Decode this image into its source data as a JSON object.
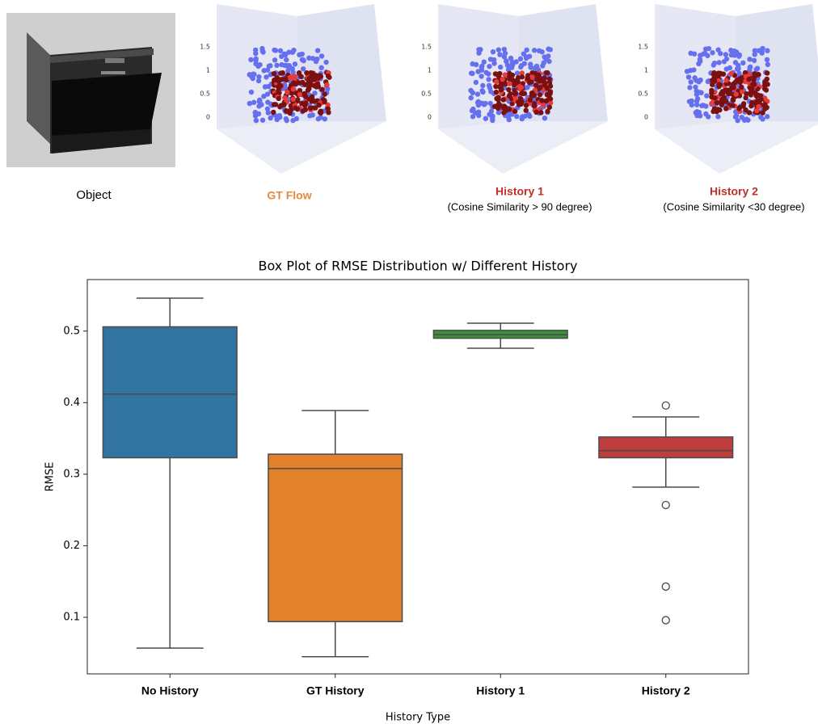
{
  "panels": [
    {
      "caption": "Object"
    },
    {
      "caption": "GT Flow",
      "caption_color": "#e8893a",
      "zticks": [
        "1.5",
        "1",
        "0.5",
        "0"
      ]
    },
    {
      "caption": "History 1",
      "subcaption": "(Cosine Similarity > 90 degree)",
      "caption_color": "#c0302b",
      "zticks": [
        "1.5",
        "1",
        "0.5",
        "0"
      ]
    },
    {
      "caption": "History 2",
      "subcaption": "(Cosine Similarity <30 degree)",
      "caption_color": "#c0302b",
      "zticks": [
        "1.5",
        "1",
        "0.5",
        "0"
      ]
    }
  ],
  "chart_data": {
    "type": "box",
    "title": "Box Plot of RMSE Distribution w/ Different History",
    "x_label": "History Type",
    "y_label": "RMSE",
    "categories": [
      "No History",
      "GT History",
      "History 1",
      "History 2"
    ],
    "series": [
      {
        "name": "No History",
        "color": "#3274a1",
        "whislo": 0.057,
        "q1": 0.323,
        "med": 0.412,
        "q3": 0.506,
        "whishi": 0.546,
        "outliers": []
      },
      {
        "name": "GT History",
        "color": "#e1812c",
        "whislo": 0.045,
        "q1": 0.094,
        "med": 0.308,
        "q3": 0.328,
        "whishi": 0.389,
        "outliers": []
      },
      {
        "name": "History 1",
        "color": "#3a923a",
        "whislo": 0.476,
        "q1": 0.49,
        "med": 0.495,
        "q3": 0.501,
        "whishi": 0.511,
        "outliers": []
      },
      {
        "name": "History 2",
        "color": "#c03d3e",
        "whislo": 0.282,
        "q1": 0.323,
        "med": 0.333,
        "q3": 0.352,
        "whishi": 0.38,
        "outliers": [
          0.396,
          0.257,
          0.143,
          0.096
        ]
      }
    ],
    "ylim": [
      0.021,
      0.572
    ],
    "yticks": [
      0.1,
      0.2,
      0.3,
      0.4,
      0.5
    ]
  }
}
